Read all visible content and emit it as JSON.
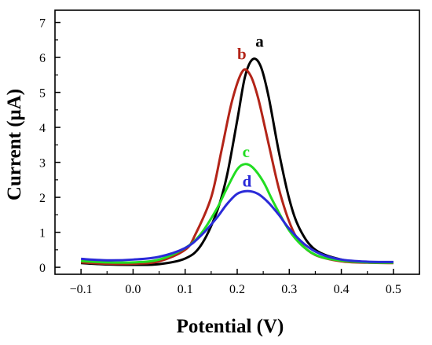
{
  "chart_data": {
    "type": "line",
    "xlabel": "Potential (V)",
    "ylabel": "Current (μA)",
    "xlim": [
      -0.15,
      0.55
    ],
    "ylim": [
      -0.2,
      7.35
    ],
    "xticks": [
      -0.1,
      0.0,
      0.1,
      0.2,
      0.3,
      0.4,
      0.5
    ],
    "xtick_labels": [
      "−0.1",
      "0.0",
      "0.1",
      "0.2",
      "0.3",
      "0.4",
      "0.5"
    ],
    "yticks": [
      0,
      1,
      2,
      3,
      4,
      5,
      6,
      7
    ],
    "ytick_labels": [
      "0",
      "1",
      "2",
      "3",
      "4",
      "5",
      "6",
      "7"
    ],
    "grid": false,
    "legend": "none",
    "series": [
      {
        "name": "a",
        "color": "#000000",
        "label_at": [
          0.235,
          6.3
        ],
        "points": [
          [
            -0.1,
            0.12
          ],
          [
            -0.05,
            0.08
          ],
          [
            0.0,
            0.07
          ],
          [
            0.05,
            0.09
          ],
          [
            0.1,
            0.25
          ],
          [
            0.13,
            0.62
          ],
          [
            0.16,
            1.55
          ],
          [
            0.18,
            2.6
          ],
          [
            0.2,
            4.2
          ],
          [
            0.215,
            5.45
          ],
          [
            0.23,
            5.95
          ],
          [
            0.245,
            5.75
          ],
          [
            0.26,
            4.9
          ],
          [
            0.28,
            3.3
          ],
          [
            0.3,
            1.95
          ],
          [
            0.32,
            1.1
          ],
          [
            0.35,
            0.5
          ],
          [
            0.4,
            0.22
          ],
          [
            0.45,
            0.15
          ],
          [
            0.5,
            0.14
          ]
        ]
      },
      {
        "name": "b",
        "color": "#b32418",
        "label_at": [
          0.2,
          5.95
        ],
        "points": [
          [
            -0.1,
            0.14
          ],
          [
            -0.05,
            0.1
          ],
          [
            0.0,
            0.1
          ],
          [
            0.05,
            0.17
          ],
          [
            0.1,
            0.5
          ],
          [
            0.12,
            0.95
          ],
          [
            0.15,
            2.0
          ],
          [
            0.17,
            3.35
          ],
          [
            0.19,
            4.75
          ],
          [
            0.21,
            5.6
          ],
          [
            0.225,
            5.5
          ],
          [
            0.24,
            4.85
          ],
          [
            0.26,
            3.55
          ],
          [
            0.28,
            2.25
          ],
          [
            0.3,
            1.3
          ],
          [
            0.32,
            0.72
          ],
          [
            0.35,
            0.35
          ],
          [
            0.4,
            0.17
          ],
          [
            0.45,
            0.13
          ],
          [
            0.5,
            0.12
          ]
        ]
      },
      {
        "name": "c",
        "color": "#22dd22",
        "label_at": [
          0.21,
          3.15
        ],
        "points": [
          [
            -0.1,
            0.18
          ],
          [
            -0.05,
            0.14
          ],
          [
            0.0,
            0.14
          ],
          [
            0.05,
            0.22
          ],
          [
            0.1,
            0.55
          ],
          [
            0.13,
            0.95
          ],
          [
            0.16,
            1.65
          ],
          [
            0.18,
            2.25
          ],
          [
            0.2,
            2.8
          ],
          [
            0.215,
            2.95
          ],
          [
            0.23,
            2.85
          ],
          [
            0.25,
            2.45
          ],
          [
            0.27,
            1.85
          ],
          [
            0.3,
            1.05
          ],
          [
            0.33,
            0.55
          ],
          [
            0.36,
            0.3
          ],
          [
            0.4,
            0.19
          ],
          [
            0.45,
            0.14
          ],
          [
            0.5,
            0.13
          ]
        ]
      },
      {
        "name": "d",
        "color": "#2a2ad8",
        "label_at": [
          0.21,
          2.3
        ],
        "points": [
          [
            -0.1,
            0.24
          ],
          [
            -0.05,
            0.2
          ],
          [
            0.0,
            0.22
          ],
          [
            0.05,
            0.3
          ],
          [
            0.1,
            0.55
          ],
          [
            0.13,
            0.9
          ],
          [
            0.16,
            1.4
          ],
          [
            0.18,
            1.8
          ],
          [
            0.2,
            2.1
          ],
          [
            0.22,
            2.18
          ],
          [
            0.24,
            2.1
          ],
          [
            0.26,
            1.85
          ],
          [
            0.28,
            1.5
          ],
          [
            0.3,
            1.1
          ],
          [
            0.33,
            0.65
          ],
          [
            0.36,
            0.38
          ],
          [
            0.4,
            0.22
          ],
          [
            0.45,
            0.16
          ],
          [
            0.5,
            0.15
          ]
        ]
      }
    ]
  }
}
